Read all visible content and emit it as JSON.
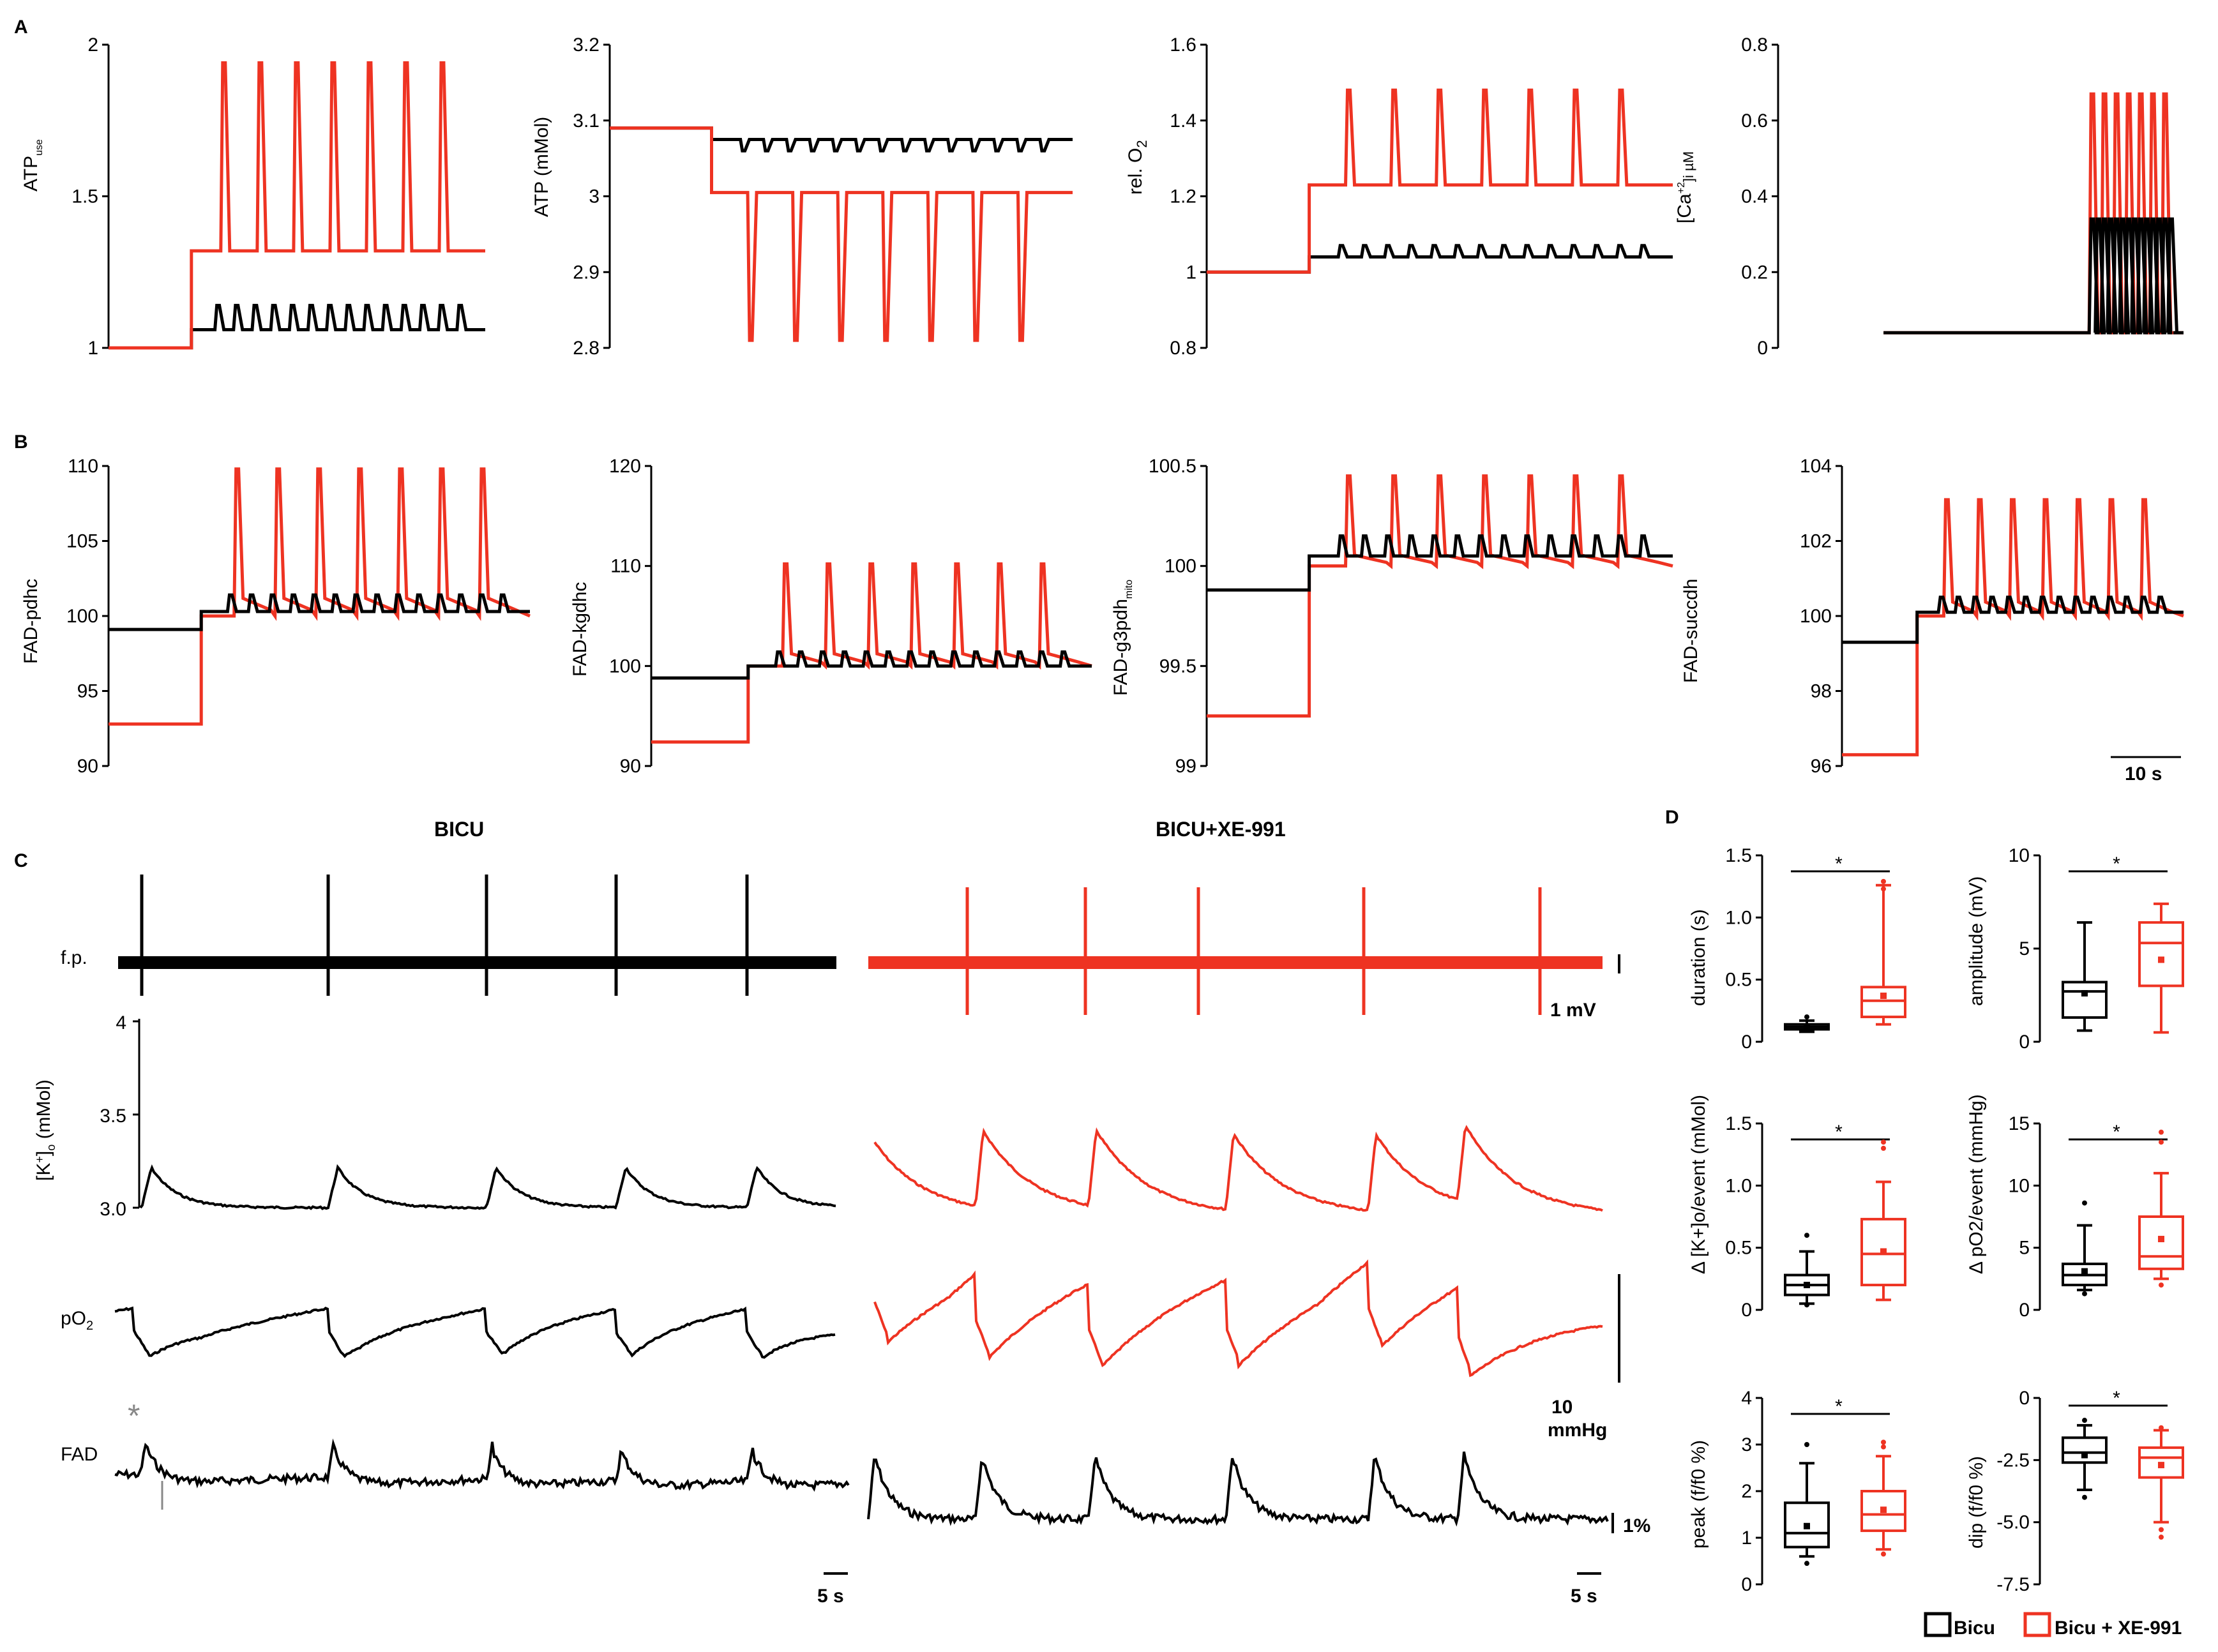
{
  "panels": {
    "A": "A",
    "B": "B",
    "C": "C",
    "D": "D"
  },
  "colors": {
    "control": "#000000",
    "xe": "#ee3322",
    "grey": "#888888"
  },
  "chart_data": [
    {
      "type": "line",
      "id": "A1",
      "ylabel": "ATP",
      "ylabel_sub": "use",
      "ylim": [
        1,
        2
      ],
      "yticks": [
        "1",
        "1.5",
        "2"
      ],
      "series": [
        {
          "name": "Bicu",
          "color": "#000000",
          "baseline_before": 1.0,
          "baseline_after": 1.06,
          "peak": 1.14,
          "spike_count": 14
        },
        {
          "name": "Bicu + XE-991",
          "color": "#ee3322",
          "baseline_before": 1.0,
          "baseline_after": 1.32,
          "peak": 1.94,
          "spike_count": 7
        }
      ]
    },
    {
      "type": "line",
      "id": "A2",
      "ylabel": "ATP (mMol)",
      "ylim": [
        2.8,
        3.2
      ],
      "yticks": [
        "2.8",
        "2.9",
        "3",
        "3.1",
        "3.2"
      ],
      "series": [
        {
          "name": "Bicu",
          "color": "#000000",
          "baseline_before": 3.09,
          "baseline_after": 3.075,
          "peak": 3.06,
          "spike_count": 14
        },
        {
          "name": "Bicu + XE-991",
          "color": "#ee3322",
          "baseline_before": 3.09,
          "baseline_after": 3.005,
          "peak": 2.81,
          "spike_count": 7
        }
      ]
    },
    {
      "type": "line",
      "id": "A3",
      "ylabel": "rel. O",
      "ylabel_sub": "2",
      "ylim": [
        0.8,
        1.6
      ],
      "yticks": [
        "0.8",
        "1",
        "1.2",
        "1.4",
        "1.6"
      ],
      "series": [
        {
          "name": "Bicu",
          "color": "#000000",
          "baseline_before": 1.0,
          "baseline_after": 1.04,
          "peak": 1.07,
          "spike_count": 14
        },
        {
          "name": "Bicu + XE-991",
          "color": "#ee3322",
          "baseline_before": 1.0,
          "baseline_after": 1.23,
          "peak": 1.48,
          "spike_count": 7
        }
      ]
    },
    {
      "type": "line",
      "id": "A4",
      "ylabel": "[Ca",
      "ylabel_sup": "+2",
      "ylabel_sub": "]i µM",
      "ylim": [
        0,
        0.8
      ],
      "yticks": [
        "0",
        "0.2",
        "0.4",
        "0.6",
        "0.8"
      ],
      "series": [
        {
          "name": "Bicu + XE-991",
          "color": "#ee3322",
          "baseline_before": 0.04,
          "baseline_after": 0.04,
          "peak": 0.67,
          "spike_count": 7
        },
        {
          "name": "Bicu",
          "color": "#000000",
          "baseline_before": 0.04,
          "baseline_after": 0.04,
          "peak": 0.34,
          "spike_count": 14
        }
      ]
    },
    {
      "type": "line",
      "id": "B1",
      "ylabel": "FAD-pdhc",
      "ylim": [
        90,
        110
      ],
      "yticks": [
        "90",
        "95",
        "100",
        "105",
        "110"
      ],
      "series": [
        {
          "name": "Bicu + XE-991",
          "color": "#ee3322",
          "baseline_before": 92.8,
          "baseline_after": 100.0,
          "peak": 109.8,
          "spike_count": 7
        },
        {
          "name": "Bicu",
          "color": "#000000",
          "baseline_before": 99.1,
          "baseline_after": 100.3,
          "peak": 101.4,
          "spike_count": 14
        }
      ]
    },
    {
      "type": "line",
      "id": "B2",
      "ylabel": "FAD-kgdhc",
      "ylim": [
        90,
        120
      ],
      "yticks": [
        "90",
        "100",
        "110",
        "120"
      ],
      "series": [
        {
          "name": "Bicu + XE-991",
          "color": "#ee3322",
          "baseline_before": 92.4,
          "baseline_after": 100.0,
          "peak": 110.2,
          "spike_count": 7
        },
        {
          "name": "Bicu",
          "color": "#000000",
          "baseline_before": 98.8,
          "baseline_after": 100.0,
          "peak": 101.4,
          "spike_count": 14
        }
      ]
    },
    {
      "type": "line",
      "id": "B3",
      "ylabel": "FAD-g3pdh",
      "ylabel_sub": "mito",
      "ylim": [
        99,
        100.5
      ],
      "yticks": [
        "99",
        "99.5",
        "100",
        "100.5"
      ],
      "series": [
        {
          "name": "Bicu + XE-991",
          "color": "#ee3322",
          "baseline_before": 99.25,
          "baseline_after": 100.0,
          "peak": 100.45,
          "spike_count": 7
        },
        {
          "name": "Bicu",
          "color": "#000000",
          "baseline_before": 99.88,
          "baseline_after": 100.05,
          "peak": 100.15,
          "spike_count": 14
        }
      ]
    },
    {
      "type": "line",
      "id": "B4",
      "ylabel": "FAD-succdh",
      "ylim": [
        96,
        104
      ],
      "yticks": [
        "96",
        "98",
        "100",
        "102",
        "104"
      ],
      "series": [
        {
          "name": "Bicu + XE-991",
          "color": "#ee3322",
          "baseline_before": 96.3,
          "baseline_after": 100.0,
          "peak": 103.1,
          "spike_count": 7
        },
        {
          "name": "Bicu",
          "color": "#000000",
          "baseline_before": 99.3,
          "baseline_after": 100.1,
          "peak": 100.5,
          "spike_count": 14
        }
      ]
    }
  ],
  "scalebar_B": "10 s",
  "panel_C": {
    "cond_left": "BICU",
    "cond_right": "BICU+XE-991",
    "label_fp": "f.p.",
    "label_k": "[K",
    "label_k_sup": "+",
    "label_k_tail": "]",
    "label_k_sub": "o",
    "label_k_unit": " (mMol)",
    "k_ticks": [
      "3.0",
      "3.5",
      "4"
    ],
    "label_po2": "pO",
    "label_po2_sub": "2",
    "label_fad": "FAD",
    "bar_1mv": "1 mV",
    "bar_10mmhg_1": "10",
    "bar_10mmhg_2": "mmHg",
    "bar_1pct": "1%",
    "bar_5s_left": "5 s",
    "bar_5s_right": "5 s",
    "asterisk": "*"
  },
  "panel_D": {
    "legend_control": "Bicu",
    "legend_xe": "Bicu + XE-991",
    "sig": "*",
    "boxes": [
      {
        "id": "duration",
        "ylabel": "duration (s)",
        "yticks": [
          "0",
          "0.5",
          "1.0",
          "1.5"
        ],
        "ylim": [
          0,
          1.5
        ],
        "bicu": {
          "min": 0.08,
          "q1": 0.1,
          "median": 0.12,
          "q3": 0.14,
          "max": 0.17,
          "mean": 0.12,
          "outliers": [
            0.2
          ]
        },
        "xe": {
          "min": 0.14,
          "q1": 0.2,
          "median": 0.33,
          "q3": 0.44,
          "max": 1.26,
          "mean": 0.37,
          "outliers": [
            1.23,
            1.29
          ]
        }
      },
      {
        "id": "amplitude",
        "ylabel": "amplitude (mV)",
        "yticks": [
          "0",
          "5",
          "10"
        ],
        "ylim": [
          0,
          10
        ],
        "bicu": {
          "min": 0.6,
          "q1": 1.3,
          "median": 2.7,
          "q3": 3.2,
          "max": 6.4,
          "mean": 2.6,
          "outliers": []
        },
        "xe": {
          "min": 0.5,
          "q1": 3.0,
          "median": 5.3,
          "q3": 6.4,
          "max": 7.4,
          "mean": 4.4,
          "outliers": []
        }
      },
      {
        "id": "dk",
        "ylabel": "Δ [K+]o/event (mMol)",
        "yticks": [
          "0",
          "0.5",
          "1.0",
          "1.5"
        ],
        "ylim": [
          0,
          1.5
        ],
        "bicu": {
          "min": 0.05,
          "q1": 0.12,
          "median": 0.2,
          "q3": 0.28,
          "max": 0.47,
          "mean": 0.2,
          "outliers": [
            0.6,
            0.04
          ]
        },
        "xe": {
          "min": 0.08,
          "q1": 0.2,
          "median": 0.45,
          "q3": 0.73,
          "max": 1.03,
          "mean": 0.47,
          "outliers": [
            1.3,
            1.35
          ]
        }
      },
      {
        "id": "dpo2",
        "ylabel": "Δ pO2/event (mmHg)",
        "yticks": [
          "0",
          "5",
          "10",
          "15"
        ],
        "ylim": [
          0,
          15
        ],
        "bicu": {
          "min": 1.6,
          "q1": 2.0,
          "median": 2.8,
          "q3": 3.7,
          "max": 6.8,
          "mean": 3.1,
          "outliers": [
            8.6,
            1.3
          ]
        },
        "xe": {
          "min": 2.5,
          "q1": 3.3,
          "median": 4.3,
          "q3": 7.5,
          "max": 11.0,
          "mean": 5.7,
          "outliers": [
            13.5,
            14.3,
            2.0
          ]
        }
      },
      {
        "id": "peak",
        "ylabel": "peak (f/f0 %)",
        "yticks": [
          "0",
          "1",
          "2",
          "3",
          "4"
        ],
        "ylim": [
          0,
          4
        ],
        "bicu": {
          "min": 0.6,
          "q1": 0.8,
          "median": 1.1,
          "q3": 1.75,
          "max": 2.6,
          "mean": 1.25,
          "outliers": [
            3.0,
            0.45
          ]
        },
        "xe": {
          "min": 0.75,
          "q1": 1.15,
          "median": 1.5,
          "q3": 2.0,
          "max": 2.75,
          "mean": 1.6,
          "outliers": [
            2.95,
            3.05,
            0.65
          ]
        }
      },
      {
        "id": "dip",
        "ylabel": "dip (f/f0 %)",
        "yticks": [
          "0",
          "-2.5",
          "-5.0",
          "-7.5"
        ],
        "ylim": [
          -7.5,
          0
        ],
        "bicu": {
          "min": -3.7,
          "q1": -2.6,
          "median": -2.2,
          "q3": -1.6,
          "max": -1.1,
          "mean": -2.3,
          "outliers": [
            -4.0,
            -0.9
          ]
        },
        "xe": {
          "min": -5.0,
          "q1": -3.2,
          "median": -2.4,
          "q3": -2.0,
          "max": -1.3,
          "mean": -2.7,
          "outliers": [
            -5.3,
            -5.6,
            -1.2
          ]
        }
      }
    ]
  }
}
